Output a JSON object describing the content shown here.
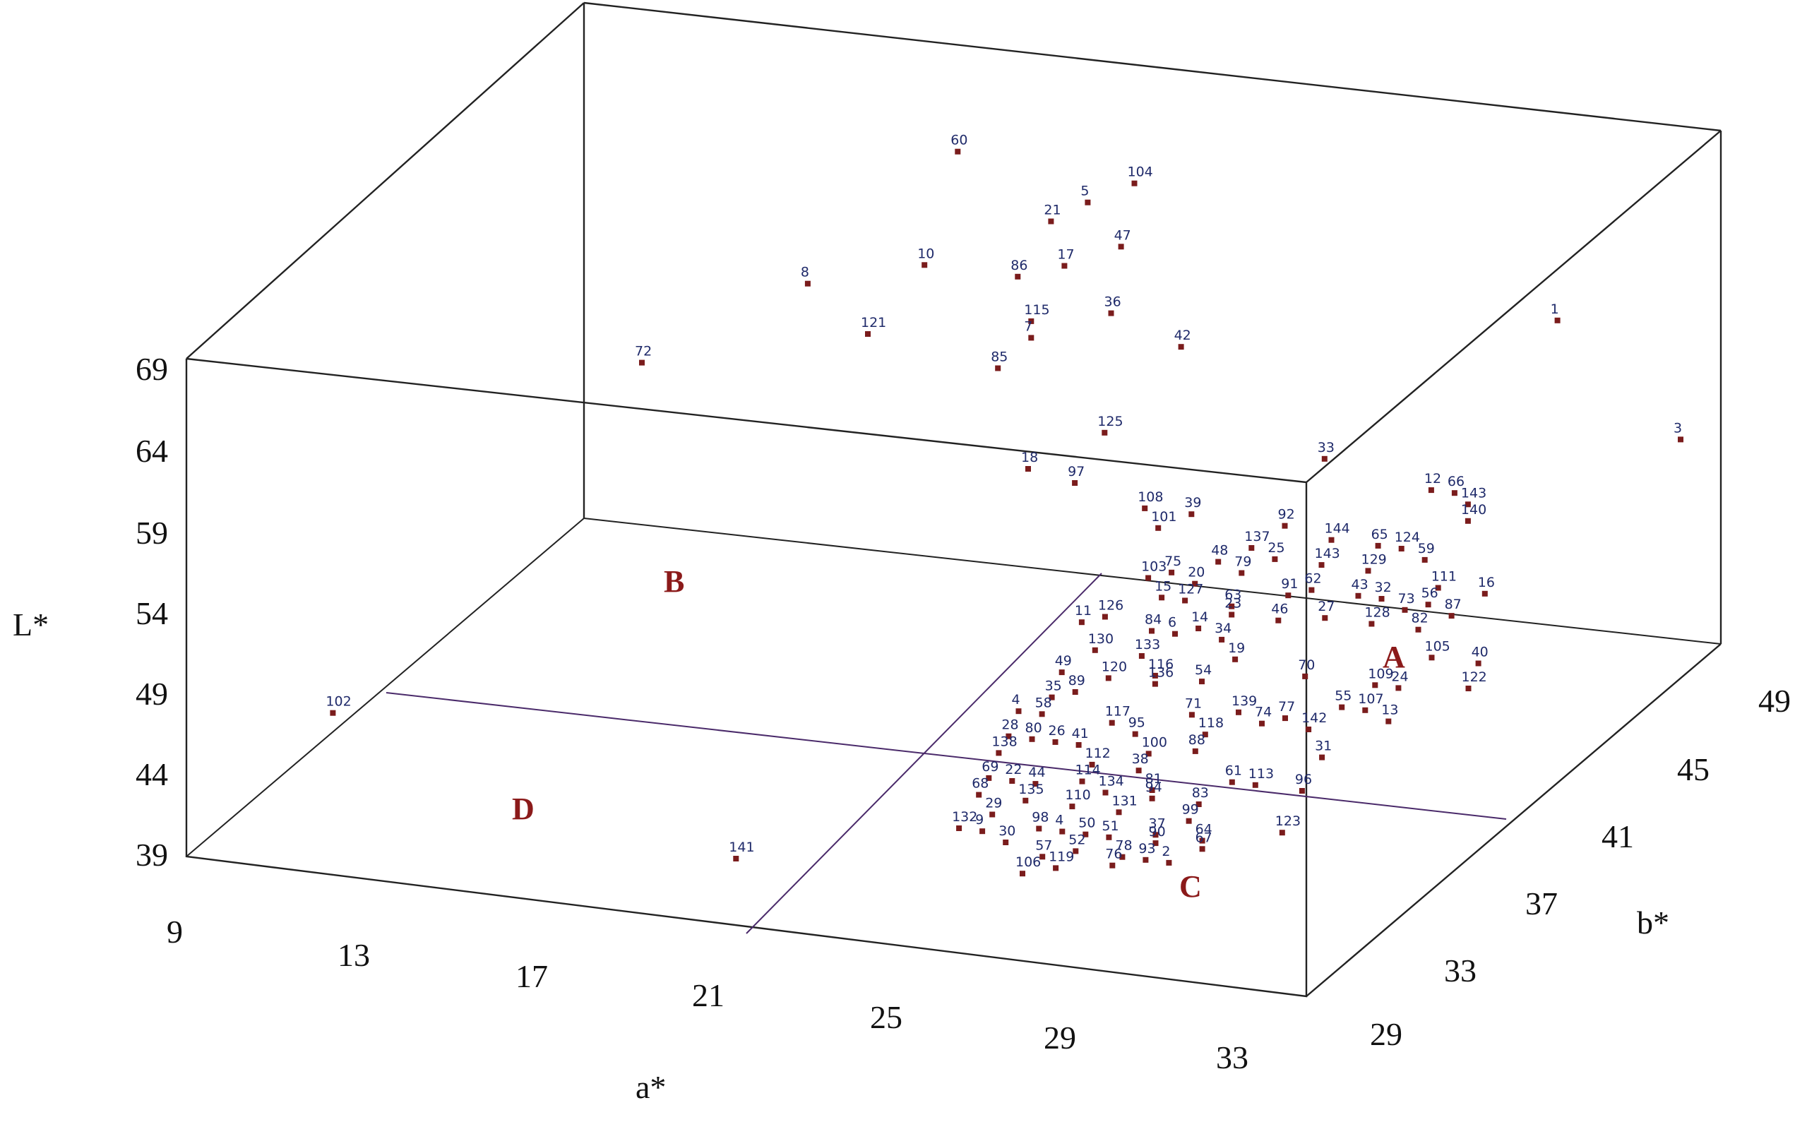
{
  "chart_data": {
    "type": "scatter",
    "dimensions": 3,
    "xlabel": "a*",
    "ylabel": "b*",
    "zlabel": "L*",
    "x_ticks": [
      "9",
      "13",
      "17",
      "21",
      "25",
      "29",
      "33"
    ],
    "y_ticks": [
      "29",
      "33",
      "37",
      "41",
      "45",
      "49"
    ],
    "z_ticks": [
      "39",
      "44",
      "49",
      "54",
      "59",
      "64",
      "69"
    ],
    "xlim": [
      9,
      33
    ],
    "ylim": [
      29,
      49
    ],
    "zlim": [
      39,
      69
    ],
    "regions": [
      "A",
      "B",
      "C",
      "D"
    ],
    "grid": false,
    "legend": "none",
    "points": [
      {
        "label": "60",
        "a": 18.5,
        "b": 45.5,
        "L": 68.0
      },
      {
        "label": "104",
        "a": 22.5,
        "b": 45.0,
        "L": 68.0
      },
      {
        "label": "5",
        "a": 21.5,
        "b": 45.0,
        "L": 66.5
      },
      {
        "label": "21",
        "a": 20.5,
        "b": 45.5,
        "L": 64.5
      },
      {
        "label": "47",
        "a": 22.0,
        "b": 45.5,
        "L": 63.5
      },
      {
        "label": "17",
        "a": 21.0,
        "b": 45.0,
        "L": 62.5
      },
      {
        "label": "10",
        "a": 18.0,
        "b": 45.0,
        "L": 61.5
      },
      {
        "label": "86",
        "a": 20.0,
        "b": 45.0,
        "L": 61.5
      },
      {
        "label": "36",
        "a": 22.0,
        "b": 45.0,
        "L": 60.0
      },
      {
        "label": "115",
        "a": 20.5,
        "b": 44.5,
        "L": 59.5
      },
      {
        "label": "8",
        "a": 15.5,
        "b": 45.0,
        "L": 59.5
      },
      {
        "label": "7",
        "a": 20.5,
        "b": 44.5,
        "L": 58.5
      },
      {
        "label": "42",
        "a": 23.5,
        "b": 45.0,
        "L": 58.5
      },
      {
        "label": "1",
        "a": 30.5,
        "b": 47.5,
        "L": 60.0
      },
      {
        "label": "121",
        "a": 17.0,
        "b": 44.5,
        "L": 57.5
      },
      {
        "label": "85",
        "a": 20.0,
        "b": 44.0,
        "L": 57.0
      },
      {
        "label": "3",
        "a": 32.5,
        "b": 49.0,
        "L": 52.0
      },
      {
        "label": "143",
        "a": 30.5,
        "b": 43.0,
        "L": 53.5
      },
      {
        "label": "125",
        "a": 22.5,
        "b": 43.5,
        "L": 54.5
      },
      {
        "label": "33",
        "a": 27.0,
        "b": 44.0,
        "L": 54.0
      },
      {
        "label": "12",
        "a": 29.5,
        "b": 43.5,
        "L": 53.5
      },
      {
        "label": "66",
        "a": 30.0,
        "b": 43.5,
        "L": 53.5
      },
      {
        "label": "140",
        "a": 30.5,
        "b": 43.0,
        "L": 52.5
      },
      {
        "label": "72",
        "a": 14.5,
        "b": 39.0,
        "L": 60.5
      },
      {
        "label": "108",
        "a": 24.0,
        "b": 42.0,
        "L": 52.0
      },
      {
        "label": "39",
        "a": 25.0,
        "b": 42.0,
        "L": 52.0
      },
      {
        "label": "18",
        "a": 21.5,
        "b": 42.0,
        "L": 53.5
      },
      {
        "label": "97",
        "a": 22.5,
        "b": 42.0,
        "L": 53.0
      },
      {
        "label": "92",
        "a": 27.0,
        "b": 42.0,
        "L": 52.0
      },
      {
        "label": "144",
        "a": 28.0,
        "b": 42.0,
        "L": 51.5
      },
      {
        "label": "65",
        "a": 29.0,
        "b": 42.0,
        "L": 51.5
      },
      {
        "label": "124",
        "a": 29.5,
        "b": 42.0,
        "L": 51.5
      },
      {
        "label": "59",
        "a": 30.0,
        "b": 42.0,
        "L": 51.0
      },
      {
        "label": "101",
        "a": 24.5,
        "b": 41.5,
        "L": 51.5
      },
      {
        "label": "137",
        "a": 26.5,
        "b": 41.5,
        "L": 51.0
      },
      {
        "label": "25",
        "a": 27.0,
        "b": 41.5,
        "L": 50.5
      },
      {
        "label": "143",
        "a": 28.0,
        "b": 41.5,
        "L": 50.5
      },
      {
        "label": "129",
        "a": 29.0,
        "b": 41.5,
        "L": 50.5
      },
      {
        "label": "48",
        "a": 26.0,
        "b": 41.0,
        "L": 50.5
      },
      {
        "label": "111",
        "a": 30.5,
        "b": 41.5,
        "L": 50.0
      },
      {
        "label": "16",
        "a": 31.5,
        "b": 41.5,
        "L": 50.0
      },
      {
        "label": "75",
        "a": 25.0,
        "b": 41.0,
        "L": 49.5
      },
      {
        "label": "79",
        "a": 26.5,
        "b": 41.0,
        "L": 50.0
      },
      {
        "label": "62",
        "a": 28.0,
        "b": 41.0,
        "L": 49.5
      },
      {
        "label": "43",
        "a": 29.0,
        "b": 41.0,
        "L": 49.5
      },
      {
        "label": "32",
        "a": 29.5,
        "b": 41.0,
        "L": 49.5
      },
      {
        "label": "56",
        "a": 30.5,
        "b": 41.0,
        "L": 49.5
      },
      {
        "label": "103",
        "a": 24.5,
        "b": 41.0,
        "L": 49.0
      },
      {
        "label": "20",
        "a": 25.5,
        "b": 41.0,
        "L": 49.0
      },
      {
        "label": "91",
        "a": 27.5,
        "b": 41.0,
        "L": 49.0
      },
      {
        "label": "73",
        "a": 30.0,
        "b": 41.0,
        "L": 49.0
      },
      {
        "label": "87",
        "a": 31.0,
        "b": 41.0,
        "L": 49.0
      },
      {
        "label": "15",
        "a": 25.0,
        "b": 40.5,
        "L": 48.5
      },
      {
        "label": "127",
        "a": 25.5,
        "b": 40.5,
        "L": 48.5
      },
      {
        "label": "63",
        "a": 26.5,
        "b": 40.5,
        "L": 48.5
      },
      {
        "label": "27",
        "a": 28.5,
        "b": 40.5,
        "L": 48.5
      },
      {
        "label": "128",
        "a": 29.5,
        "b": 40.5,
        "L": 48.5
      },
      {
        "label": "82",
        "a": 30.5,
        "b": 40.5,
        "L": 48.5
      },
      {
        "label": "23",
        "a": 26.5,
        "b": 40.5,
        "L": 48.0
      },
      {
        "label": "46",
        "a": 27.5,
        "b": 40.5,
        "L": 48.0
      },
      {
        "label": "126",
        "a": 24.0,
        "b": 40.0,
        "L": 47.5
      },
      {
        "label": "14",
        "a": 26.0,
        "b": 40.0,
        "L": 47.5
      },
      {
        "label": "105",
        "a": 31.0,
        "b": 40.0,
        "L": 47.5
      },
      {
        "label": "40",
        "a": 32.0,
        "b": 40.0,
        "L": 47.5
      },
      {
        "label": "11",
        "a": 23.5,
        "b": 40.0,
        "L": 47.0
      },
      {
        "label": "84",
        "a": 25.0,
        "b": 40.0,
        "L": 47.0
      },
      {
        "label": "6",
        "a": 25.5,
        "b": 40.0,
        "L": 47.0
      },
      {
        "label": "34",
        "a": 26.5,
        "b": 40.0,
        "L": 47.0
      },
      {
        "label": "122",
        "a": 32.0,
        "b": 39.5,
        "L": 46.5
      },
      {
        "label": "130",
        "a": 24.0,
        "b": 39.5,
        "L": 46.0
      },
      {
        "label": "133",
        "a": 25.0,
        "b": 39.5,
        "L": 46.0
      },
      {
        "label": "19",
        "a": 27.0,
        "b": 39.5,
        "L": 46.5
      },
      {
        "label": "70",
        "a": 28.5,
        "b": 39.5,
        "L": 46.0
      },
      {
        "label": "109",
        "a": 30.0,
        "b": 39.5,
        "L": 46.0
      },
      {
        "label": "24",
        "a": 30.5,
        "b": 39.5,
        "L": 46.0
      },
      {
        "label": "116",
        "a": 25.5,
        "b": 39.0,
        "L": 45.5
      },
      {
        "label": "54",
        "a": 26.5,
        "b": 39.0,
        "L": 45.5
      },
      {
        "label": "49",
        "a": 23.5,
        "b": 39.0,
        "L": 45.0
      },
      {
        "label": "120",
        "a": 24.5,
        "b": 39.0,
        "L": 45.0
      },
      {
        "label": "136",
        "a": 25.5,
        "b": 39.0,
        "L": 45.0
      },
      {
        "label": "55",
        "a": 29.5,
        "b": 39.0,
        "L": 45.0
      },
      {
        "label": "107",
        "a": 30.0,
        "b": 39.0,
        "L": 45.0
      },
      {
        "label": "13",
        "a": 30.5,
        "b": 39.0,
        "L": 44.5
      },
      {
        "label": "89",
        "a": 24.0,
        "b": 38.5,
        "L": 44.5
      },
      {
        "label": "139",
        "a": 27.5,
        "b": 38.5,
        "L": 44.5
      },
      {
        "label": "77",
        "a": 28.5,
        "b": 38.5,
        "L": 44.5
      },
      {
        "label": "35",
        "a": 23.5,
        "b": 38.5,
        "L": 44.0
      },
      {
        "label": "71",
        "a": 26.5,
        "b": 38.5,
        "L": 44.0
      },
      {
        "label": "74",
        "a": 28.0,
        "b": 38.5,
        "L": 44.0
      },
      {
        "label": "142",
        "a": 29.0,
        "b": 38.5,
        "L": 44.0
      },
      {
        "label": "117",
        "a": 25.0,
        "b": 38.0,
        "L": 43.5
      },
      {
        "label": "118",
        "a": 27.0,
        "b": 38.0,
        "L": 43.5
      },
      {
        "label": "4",
        "a": 23.0,
        "b": 38.0,
        "L": 43.5
      },
      {
        "label": "58",
        "a": 23.5,
        "b": 38.0,
        "L": 43.5
      },
      {
        "label": "95",
        "a": 25.5,
        "b": 38.0,
        "L": 43.0
      },
      {
        "label": "31",
        "a": 29.5,
        "b": 38.0,
        "L": 43.0
      },
      {
        "label": "88",
        "a": 27.0,
        "b": 37.5,
        "L": 43.0
      },
      {
        "label": "41",
        "a": 24.5,
        "b": 37.5,
        "L": 42.5
      },
      {
        "label": "28",
        "a": 23.0,
        "b": 37.5,
        "L": 42.5
      },
      {
        "label": "80",
        "a": 23.5,
        "b": 37.5,
        "L": 42.5
      },
      {
        "label": "26",
        "a": 24.0,
        "b": 37.5,
        "L": 42.5
      },
      {
        "label": "100",
        "a": 26.0,
        "b": 37.5,
        "L": 42.5
      },
      {
        "label": "138",
        "a": 23.0,
        "b": 37.0,
        "L": 42.0
      },
      {
        "label": "112",
        "a": 25.0,
        "b": 37.0,
        "L": 42.0
      },
      {
        "label": "38",
        "a": 26.0,
        "b": 37.0,
        "L": 42.0
      },
      {
        "label": "61",
        "a": 28.0,
        "b": 37.0,
        "L": 42.0
      },
      {
        "label": "113",
        "a": 28.5,
        "b": 37.0,
        "L": 42.0
      },
      {
        "label": "96",
        "a": 29.5,
        "b": 37.0,
        "L": 42.0
      },
      {
        "label": "81",
        "a": 26.5,
        "b": 36.5,
        "L": 41.5
      },
      {
        "label": "114",
        "a": 25.0,
        "b": 36.5,
        "L": 41.5
      },
      {
        "label": "69",
        "a": 23.0,
        "b": 36.5,
        "L": 41.0
      },
      {
        "label": "22",
        "a": 23.5,
        "b": 36.5,
        "L": 41.0
      },
      {
        "label": "44",
        "a": 24.0,
        "b": 36.5,
        "L": 41.0
      },
      {
        "label": "134",
        "a": 25.5,
        "b": 36.5,
        "L": 41.0
      },
      {
        "label": "94",
        "a": 26.5,
        "b": 36.5,
        "L": 41.0
      },
      {
        "label": "83",
        "a": 27.5,
        "b": 36.5,
        "L": 41.0
      },
      {
        "label": "68",
        "a": 23.0,
        "b": 36.0,
        "L": 40.5
      },
      {
        "label": "135",
        "a": 24.0,
        "b": 36.0,
        "L": 40.5
      },
      {
        "label": "110",
        "a": 25.0,
        "b": 36.0,
        "L": 40.5
      },
      {
        "label": "131",
        "a": 26.0,
        "b": 36.0,
        "L": 40.5
      },
      {
        "label": "99",
        "a": 27.5,
        "b": 36.0,
        "L": 40.5
      },
      {
        "label": "123",
        "a": 29.5,
        "b": 36.0,
        "L": 40.5
      },
      {
        "label": "29",
        "a": 23.5,
        "b": 35.5,
        "L": 40.0
      },
      {
        "label": "37",
        "a": 27.0,
        "b": 35.5,
        "L": 40.0
      },
      {
        "label": "64",
        "a": 28.0,
        "b": 35.5,
        "L": 40.0
      },
      {
        "label": "98",
        "a": 24.5,
        "b": 35.5,
        "L": 39.5
      },
      {
        "label": "4",
        "a": 25.0,
        "b": 35.5,
        "L": 39.5
      },
      {
        "label": "50",
        "a": 25.5,
        "b": 35.5,
        "L": 39.5
      },
      {
        "label": "51",
        "a": 26.0,
        "b": 35.5,
        "L": 39.5
      },
      {
        "label": "90",
        "a": 27.0,
        "b": 35.5,
        "L": 39.5
      },
      {
        "label": "67",
        "a": 28.0,
        "b": 35.5,
        "L": 39.5
      },
      {
        "label": "132",
        "a": 23.0,
        "b": 35.0,
        "L": 39.5
      },
      {
        "label": "9",
        "a": 23.5,
        "b": 35.0,
        "L": 39.5
      },
      {
        "label": "30",
        "a": 24.0,
        "b": 35.0,
        "L": 39.0
      },
      {
        "label": "52",
        "a": 25.5,
        "b": 35.0,
        "L": 39.0
      },
      {
        "label": "93",
        "a": 27.0,
        "b": 35.0,
        "L": 39.0
      },
      {
        "label": "78",
        "a": 26.5,
        "b": 35.0,
        "L": 39.0
      },
      {
        "label": "2",
        "a": 27.5,
        "b": 35.0,
        "L": 39.0
      },
      {
        "label": "57",
        "a": 25.0,
        "b": 34.5,
        "L": 39.0
      },
      {
        "label": "76",
        "a": 26.5,
        "b": 34.5,
        "L": 39.0
      },
      {
        "label": "119",
        "a": 25.5,
        "b": 34.0,
        "L": 39.0
      },
      {
        "label": "106",
        "a": 25.0,
        "b": 33.5,
        "L": 39.0
      },
      {
        "label": "102",
        "a": 11.5,
        "b": 30.5,
        "L": 47.0
      },
      {
        "label": "141",
        "a": 19.5,
        "b": 32.0,
        "L": 39.5
      }
    ]
  }
}
